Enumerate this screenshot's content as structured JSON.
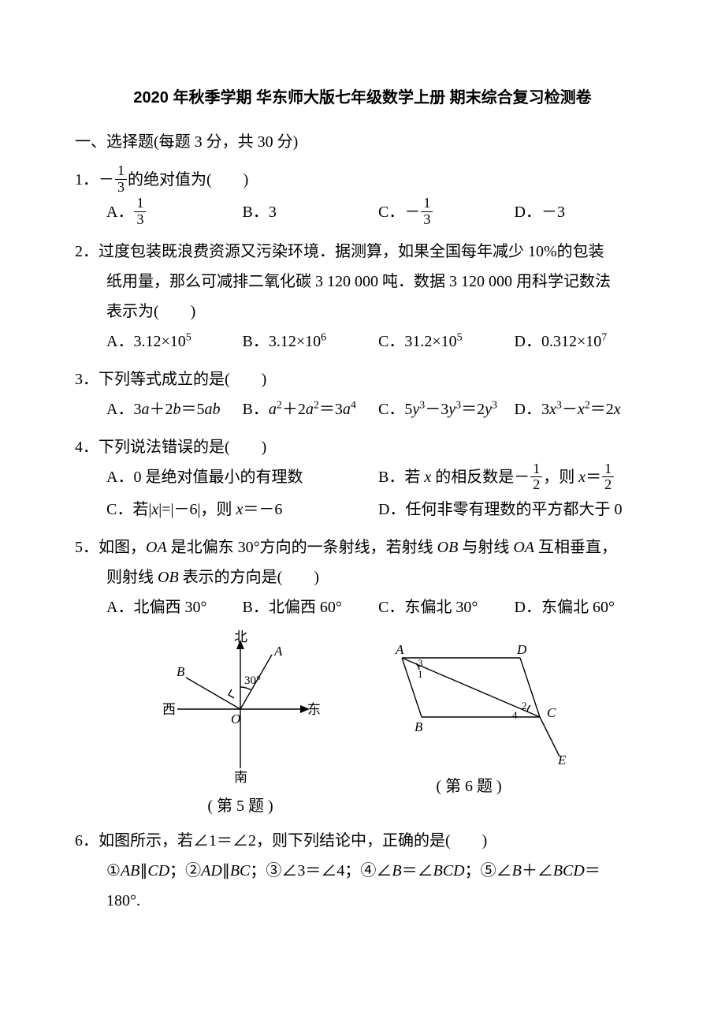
{
  "title": "2020 年秋季学期 华东师大版七年级数学上册 期末综合复习检测卷",
  "section1_head": "一、选择题(每题 3 分，共 30 分)",
  "q1": {
    "num": "1．",
    "stem_a": "－",
    "frac_num": "1",
    "frac_den": "3",
    "stem_b": "的绝对值为(　　)",
    "optA_pre": "A．",
    "optB": "B．3",
    "optC_pre": "C．－",
    "optD": "D．－3"
  },
  "q2": {
    "num": "2．",
    "line1": "过度包装既浪费资源又污染环境．据测算，如果全国每年减少 10%的包装",
    "line2": "纸用量，那么可减排二氧化碳 3 120 000 吨．数据 3 120 000 用科学记数法",
    "line3": "表示为(　　)",
    "optA_a": "A．3.12×10",
    "optA_exp": "5",
    "optB_a": "B．3.12×10",
    "optB_exp": "6",
    "optC_a": "C．31.2×10",
    "optC_exp": "5",
    "optD_a": "D．0.312×10",
    "optD_exp": "7"
  },
  "q3": {
    "num": "3．",
    "stem": "下列等式成立的是(　　)",
    "optA": "A．3<i>a</i>＋2<i>b</i>＝5<i>ab</i>",
    "optB": "B．<i>a</i><sup>2</sup>＋2<i>a</i><sup>2</sup>＝3<i>a</i><sup>4</sup>",
    "optC": "C．5<i>y</i><sup>3</sup>－3<i>y</i><sup>3</sup>＝2<i>y</i><sup>3</sup>",
    "optD": "D．3<i>x</i><sup>3</sup>－<i>x</i><sup>2</sup>＝2<i>x</i>"
  },
  "q4": {
    "num": "4．",
    "stem": "下列说法错误的是(　　)",
    "optA": "A．0 是绝对值最小的有理数",
    "optB_pre": "B．若 <i>x</i> 的相反数是－",
    "optB_mid": "，则 <i>x</i>＝",
    "frac_num": "1",
    "frac_den": "2",
    "optC": "C．若|<i>x</i>|=|－6|，则 <i>x</i>＝－6",
    "optD": "D．任何非零有理数的平方都大于 0"
  },
  "q5": {
    "num": "5．",
    "line1": "如图，<i>OA</i> 是北偏东 30°方向的一条射线，若射线 <i>OB</i> 与射线 <i>OA</i> 互相垂直，",
    "line2": "则射线 <i>OB</i> 表示的方向是(　　)",
    "optA": "A．北偏西 30°",
    "optB": "B．北偏西 60°",
    "optC": "C．东偏北 30°",
    "optD": "D．东偏北 60°"
  },
  "fig5": {
    "caption": "( 第 5 题 )",
    "labels": {
      "N": "北",
      "S": "南",
      "E": "东",
      "W": "西",
      "A": "A",
      "B": "B",
      "O": "O",
      "ang": "30°"
    },
    "stroke": "#000000",
    "tick": "#000000"
  },
  "fig6": {
    "caption": "( 第 6 题 )",
    "labels": {
      "A": "A",
      "B": "B",
      "C": "C",
      "D": "D",
      "E": "E",
      "n1": "1",
      "n2": "2",
      "n3": "3",
      "n4": "4"
    },
    "stroke": "#000000"
  },
  "q6": {
    "num": "6．",
    "stem": "如图所示，若∠1＝∠2，则下列结论中，正确的是(　　)",
    "line2": "①<i>AB</i>∥<i>CD</i>；②<i>AD</i>∥<i>BC</i>；③∠3＝∠4；④∠<i>B</i>＝∠<i>BCD</i>；⑤∠<i>B</i>＋∠<i>BCD</i>＝",
    "line3": "180°."
  }
}
